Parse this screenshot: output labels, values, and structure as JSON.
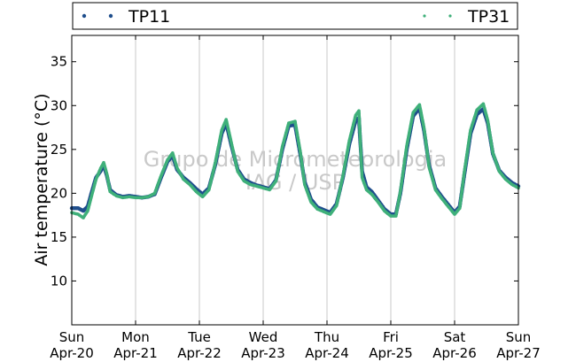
{
  "chart_data": {
    "type": "scatter",
    "ylabel": "Air temperature (°C)",
    "xlabel": "",
    "ylim": [
      5,
      38
    ],
    "yticks": [
      10,
      15,
      20,
      25,
      30,
      35
    ],
    "xlim_days": [
      0,
      7
    ],
    "xticks": [
      {
        "day": "Sun",
        "date": "Apr-20"
      },
      {
        "day": "Mon",
        "date": "Apr-21"
      },
      {
        "day": "Tue",
        "date": "Apr-22"
      },
      {
        "day": "Wed",
        "date": "Apr-23"
      },
      {
        "day": "Thu",
        "date": "Apr-24"
      },
      {
        "day": "Fri",
        "date": "Apr-25"
      },
      {
        "day": "Sat",
        "date": "Apr-26"
      },
      {
        "day": "Sun",
        "date": "Apr-27"
      }
    ],
    "grid": "vertical",
    "legend_position": "top",
    "watermark": [
      "Grupo de Micrometeorologia",
      "IAG / USP"
    ],
    "series": [
      {
        "name": "TP11",
        "color": "#1f4e8c",
        "points": [
          [
            0.0,
            18.3
          ],
          [
            0.1,
            18.3
          ],
          [
            0.18,
            18.0
          ],
          [
            0.25,
            18.5
          ],
          [
            0.3,
            19.8
          ],
          [
            0.38,
            21.8
          ],
          [
            0.45,
            22.5
          ],
          [
            0.5,
            23.2
          ],
          [
            0.55,
            22.0
          ],
          [
            0.6,
            20.4
          ],
          [
            0.7,
            19.8
          ],
          [
            0.8,
            19.6
          ],
          [
            0.9,
            19.7
          ],
          [
            1.0,
            19.6
          ],
          [
            1.1,
            19.5
          ],
          [
            1.2,
            19.6
          ],
          [
            1.3,
            19.9
          ],
          [
            1.4,
            21.8
          ],
          [
            1.5,
            23.6
          ],
          [
            1.58,
            24.3
          ],
          [
            1.65,
            22.7
          ],
          [
            1.75,
            21.8
          ],
          [
            1.85,
            21.2
          ],
          [
            1.95,
            20.5
          ],
          [
            2.05,
            19.9
          ],
          [
            2.15,
            20.6
          ],
          [
            2.25,
            23.3
          ],
          [
            2.35,
            26.8
          ],
          [
            2.42,
            28.0
          ],
          [
            2.5,
            25.5
          ],
          [
            2.6,
            22.7
          ],
          [
            2.7,
            21.6
          ],
          [
            2.8,
            21.2
          ],
          [
            2.9,
            20.9
          ],
          [
            3.0,
            20.7
          ],
          [
            3.1,
            20.5
          ],
          [
            3.2,
            21.5
          ],
          [
            3.3,
            25.0
          ],
          [
            3.4,
            27.7
          ],
          [
            3.5,
            27.8
          ],
          [
            3.58,
            24.5
          ],
          [
            3.65,
            21.3
          ],
          [
            3.75,
            19.3
          ],
          [
            3.85,
            18.4
          ],
          [
            3.95,
            18.1
          ],
          [
            4.05,
            17.8
          ],
          [
            4.15,
            18.8
          ],
          [
            4.25,
            21.8
          ],
          [
            4.35,
            25.6
          ],
          [
            4.45,
            28.3
          ],
          [
            4.5,
            28.6
          ],
          [
            4.55,
            22.5
          ],
          [
            4.62,
            20.7
          ],
          [
            4.7,
            20.2
          ],
          [
            4.8,
            19.2
          ],
          [
            4.9,
            18.2
          ],
          [
            5.0,
            17.6
          ],
          [
            5.08,
            17.6
          ],
          [
            5.15,
            20.0
          ],
          [
            5.25,
            25.0
          ],
          [
            5.35,
            28.8
          ],
          [
            5.45,
            29.7
          ],
          [
            5.52,
            27.2
          ],
          [
            5.6,
            23.2
          ],
          [
            5.7,
            20.6
          ],
          [
            5.8,
            19.6
          ],
          [
            5.9,
            18.7
          ],
          [
            6.0,
            17.8
          ],
          [
            6.08,
            18.5
          ],
          [
            6.15,
            22.0
          ],
          [
            6.25,
            26.8
          ],
          [
            6.35,
            29.0
          ],
          [
            6.45,
            29.6
          ],
          [
            6.52,
            28.0
          ],
          [
            6.6,
            24.5
          ],
          [
            6.7,
            22.6
          ],
          [
            6.8,
            21.8
          ],
          [
            6.9,
            21.2
          ],
          [
            7.0,
            20.8
          ]
        ]
      },
      {
        "name": "TP31",
        "color": "#3fb07a",
        "points": [
          [
            0.0,
            17.8
          ],
          [
            0.1,
            17.6
          ],
          [
            0.18,
            17.2
          ],
          [
            0.25,
            18.0
          ],
          [
            0.3,
            19.4
          ],
          [
            0.38,
            21.6
          ],
          [
            0.45,
            22.8
          ],
          [
            0.5,
            23.5
          ],
          [
            0.55,
            22.2
          ],
          [
            0.6,
            20.2
          ],
          [
            0.7,
            19.7
          ],
          [
            0.8,
            19.5
          ],
          [
            0.9,
            19.6
          ],
          [
            1.0,
            19.5
          ],
          [
            1.1,
            19.5
          ],
          [
            1.2,
            19.6
          ],
          [
            1.3,
            20.0
          ],
          [
            1.4,
            22.0
          ],
          [
            1.5,
            23.8
          ],
          [
            1.58,
            24.6
          ],
          [
            1.65,
            22.9
          ],
          [
            1.75,
            21.6
          ],
          [
            1.85,
            21.0
          ],
          [
            1.95,
            20.2
          ],
          [
            2.05,
            19.6
          ],
          [
            2.15,
            20.4
          ],
          [
            2.25,
            23.5
          ],
          [
            2.35,
            27.2
          ],
          [
            2.42,
            28.4
          ],
          [
            2.5,
            25.8
          ],
          [
            2.6,
            22.5
          ],
          [
            2.7,
            21.4
          ],
          [
            2.8,
            21.0
          ],
          [
            2.9,
            20.8
          ],
          [
            3.0,
            20.6
          ],
          [
            3.1,
            20.4
          ],
          [
            3.2,
            21.4
          ],
          [
            3.3,
            25.3
          ],
          [
            3.4,
            28.0
          ],
          [
            3.5,
            28.2
          ],
          [
            3.58,
            24.8
          ],
          [
            3.65,
            21.0
          ],
          [
            3.75,
            19.0
          ],
          [
            3.85,
            18.2
          ],
          [
            3.95,
            17.9
          ],
          [
            4.05,
            17.6
          ],
          [
            4.15,
            18.6
          ],
          [
            4.25,
            22.0
          ],
          [
            4.35,
            26.0
          ],
          [
            4.45,
            28.9
          ],
          [
            4.5,
            29.4
          ],
          [
            4.55,
            21.8
          ],
          [
            4.62,
            20.4
          ],
          [
            4.7,
            19.9
          ],
          [
            4.8,
            19.0
          ],
          [
            4.9,
            18.0
          ],
          [
            5.0,
            17.4
          ],
          [
            5.08,
            17.4
          ],
          [
            5.15,
            20.2
          ],
          [
            5.25,
            25.4
          ],
          [
            5.35,
            29.2
          ],
          [
            5.45,
            30.1
          ],
          [
            5.52,
            27.5
          ],
          [
            5.6,
            23.0
          ],
          [
            5.7,
            20.4
          ],
          [
            5.8,
            19.4
          ],
          [
            5.9,
            18.5
          ],
          [
            6.0,
            17.6
          ],
          [
            6.08,
            18.3
          ],
          [
            6.15,
            22.3
          ],
          [
            6.25,
            27.2
          ],
          [
            6.35,
            29.5
          ],
          [
            6.45,
            30.2
          ],
          [
            6.52,
            28.3
          ],
          [
            6.6,
            24.6
          ],
          [
            6.7,
            22.5
          ],
          [
            6.8,
            21.6
          ],
          [
            6.9,
            21.0
          ],
          [
            7.0,
            20.6
          ]
        ]
      }
    ]
  }
}
